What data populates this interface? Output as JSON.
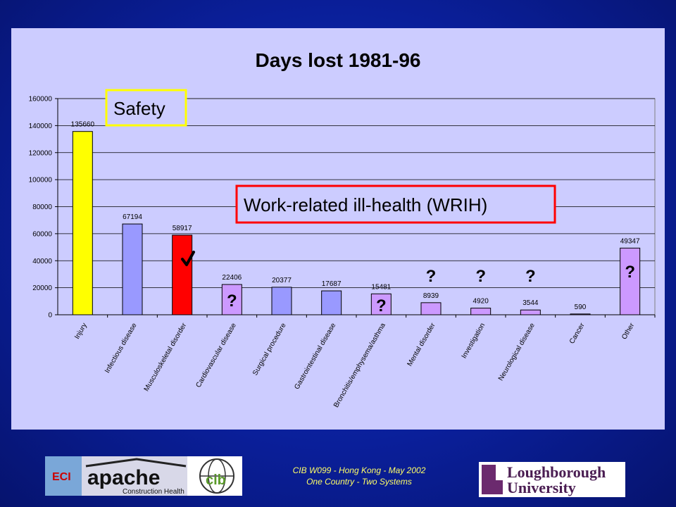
{
  "chart_data": {
    "type": "bar",
    "title": "Days lost 1981-96",
    "categories": [
      "Injury",
      "Infectious disease",
      "Musculoskeletal disorder",
      "Cardiovascular disease",
      "Surgical procedure",
      "Gastrointestinal disease",
      "Bronchitis/emphysema/asthma",
      "Mental disorder",
      "Investigation",
      "Neurological disease",
      "Cancer",
      "Other"
    ],
    "values": [
      135660,
      67194,
      58917,
      22406,
      20377,
      17687,
      15481,
      8939,
      4920,
      3544,
      590,
      49347
    ],
    "data_labels": [
      "135660",
      "67194",
      "58917",
      "22406",
      "20377",
      "17687",
      "15481",
      "8939",
      "4920",
      "3544",
      "590",
      "49347"
    ],
    "bar_colors": [
      "#ffff00",
      "#9999ff",
      "#ff0000",
      "#cc99ff",
      "#9999ff",
      "#9999ff",
      "#cc99ff",
      "#cc99ff",
      "#cc99ff",
      "#cc99ff",
      "#cc99ff",
      "#cc99ff"
    ],
    "ylim": [
      0,
      160000
    ],
    "yticks": [
      "0",
      "20000",
      "40000",
      "60000",
      "80000",
      "100000",
      "120000",
      "140000",
      "160000"
    ],
    "ytick_values": [
      0,
      20000,
      40000,
      60000,
      80000,
      100000,
      120000,
      140000,
      160000
    ],
    "grid": true,
    "legend": "none",
    "annotations": {
      "safety_label": "Safety",
      "wrih_label": "Work-related ill-health (WRIH)",
      "checkmark_icon": "checkmark-icon",
      "question_marks": [
        {
          "category": "Cardiovascular disease",
          "text": "?"
        },
        {
          "category": "Bronchitis/emphysema/asthma",
          "text": "?"
        },
        {
          "category": "Mental disorder",
          "text": "?"
        },
        {
          "category": "Investigation",
          "text": "?"
        },
        {
          "category": "Neurological disease",
          "text": "?"
        },
        {
          "category": "Other",
          "text": "?"
        }
      ]
    }
  },
  "footer": {
    "caption_line1": "CIB W099 - Hong Kong - May 2002",
    "caption_line2": "One Country - Two Systems",
    "logo_eci": "ECI",
    "logo_apache": "apache",
    "logo_apache_sub": "Construction Health",
    "logo_cib": "cib",
    "logo_lboro_line1": "Loughborough",
    "logo_lboro_line2": "University"
  },
  "colors": {
    "background": "#0a1f9a",
    "panel": "#ccccff",
    "footer_text": "#ffff66"
  }
}
